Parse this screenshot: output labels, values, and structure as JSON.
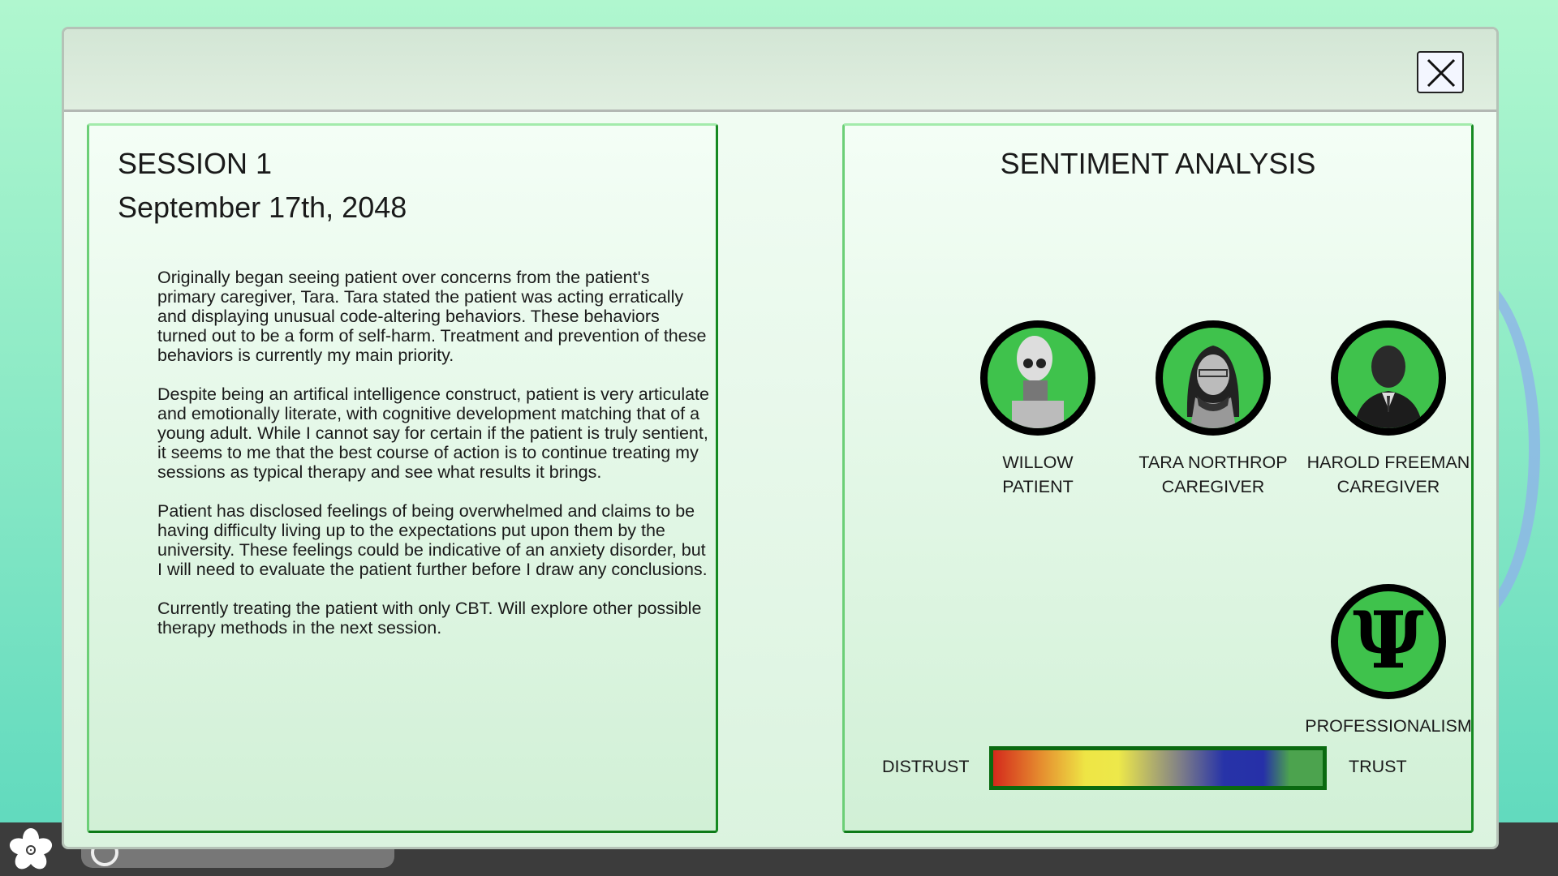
{
  "close_icon": "close-icon",
  "session": {
    "title": "SESSION 1",
    "date": "September 17th, 2048",
    "paragraphs": [
      "Originally began seeing patient over concerns from the patient's primary caregiver, Tara. Tara stated the patient was acting erratically and displaying unusual code-altering behaviors. These behaviors turned out to be a form of self-harm. Treatment and prevention of these behaviors is currently my main priority.",
      "Despite being an artifical intelligence construct, patient is very articulate and emotionally literate, with cognitive development matching that of a young adult. While I cannot say for certain if the patient is truly sentient, it seems to me that the best course of action is to continue treating my sessions as typical therapy and see what results it brings.",
      "Patient has disclosed feelings of being overwhelmed and claims to be having difficulty living up to the expectations put upon them by the university. These feelings could be indicative of an anxiety disorder, but I will need to evaluate the patient further before I draw any conclusions.",
      "Currently treating the patient with only CBT. Will explore other possible therapy methods in the next session."
    ]
  },
  "sentiment": {
    "title": "SENTIMENT ANALYSIS",
    "people": [
      {
        "name": "WILLOW",
        "role": "PATIENT",
        "ring_color": "#3fc24c"
      },
      {
        "name": "TARA NORTHROP",
        "role": "CAREGIVER",
        "ring_color": "#3fc24c"
      },
      {
        "name": "HAROLD FREEMAN",
        "role": "CAREGIVER",
        "ring_color": "#3fc24c"
      }
    ],
    "professionalism": {
      "label": "PROFESSIONALISM",
      "icon": "psi-icon",
      "color": "#3fc24c"
    },
    "scale": {
      "min_label": "DISTRUST",
      "max_label": "TRUST"
    }
  }
}
